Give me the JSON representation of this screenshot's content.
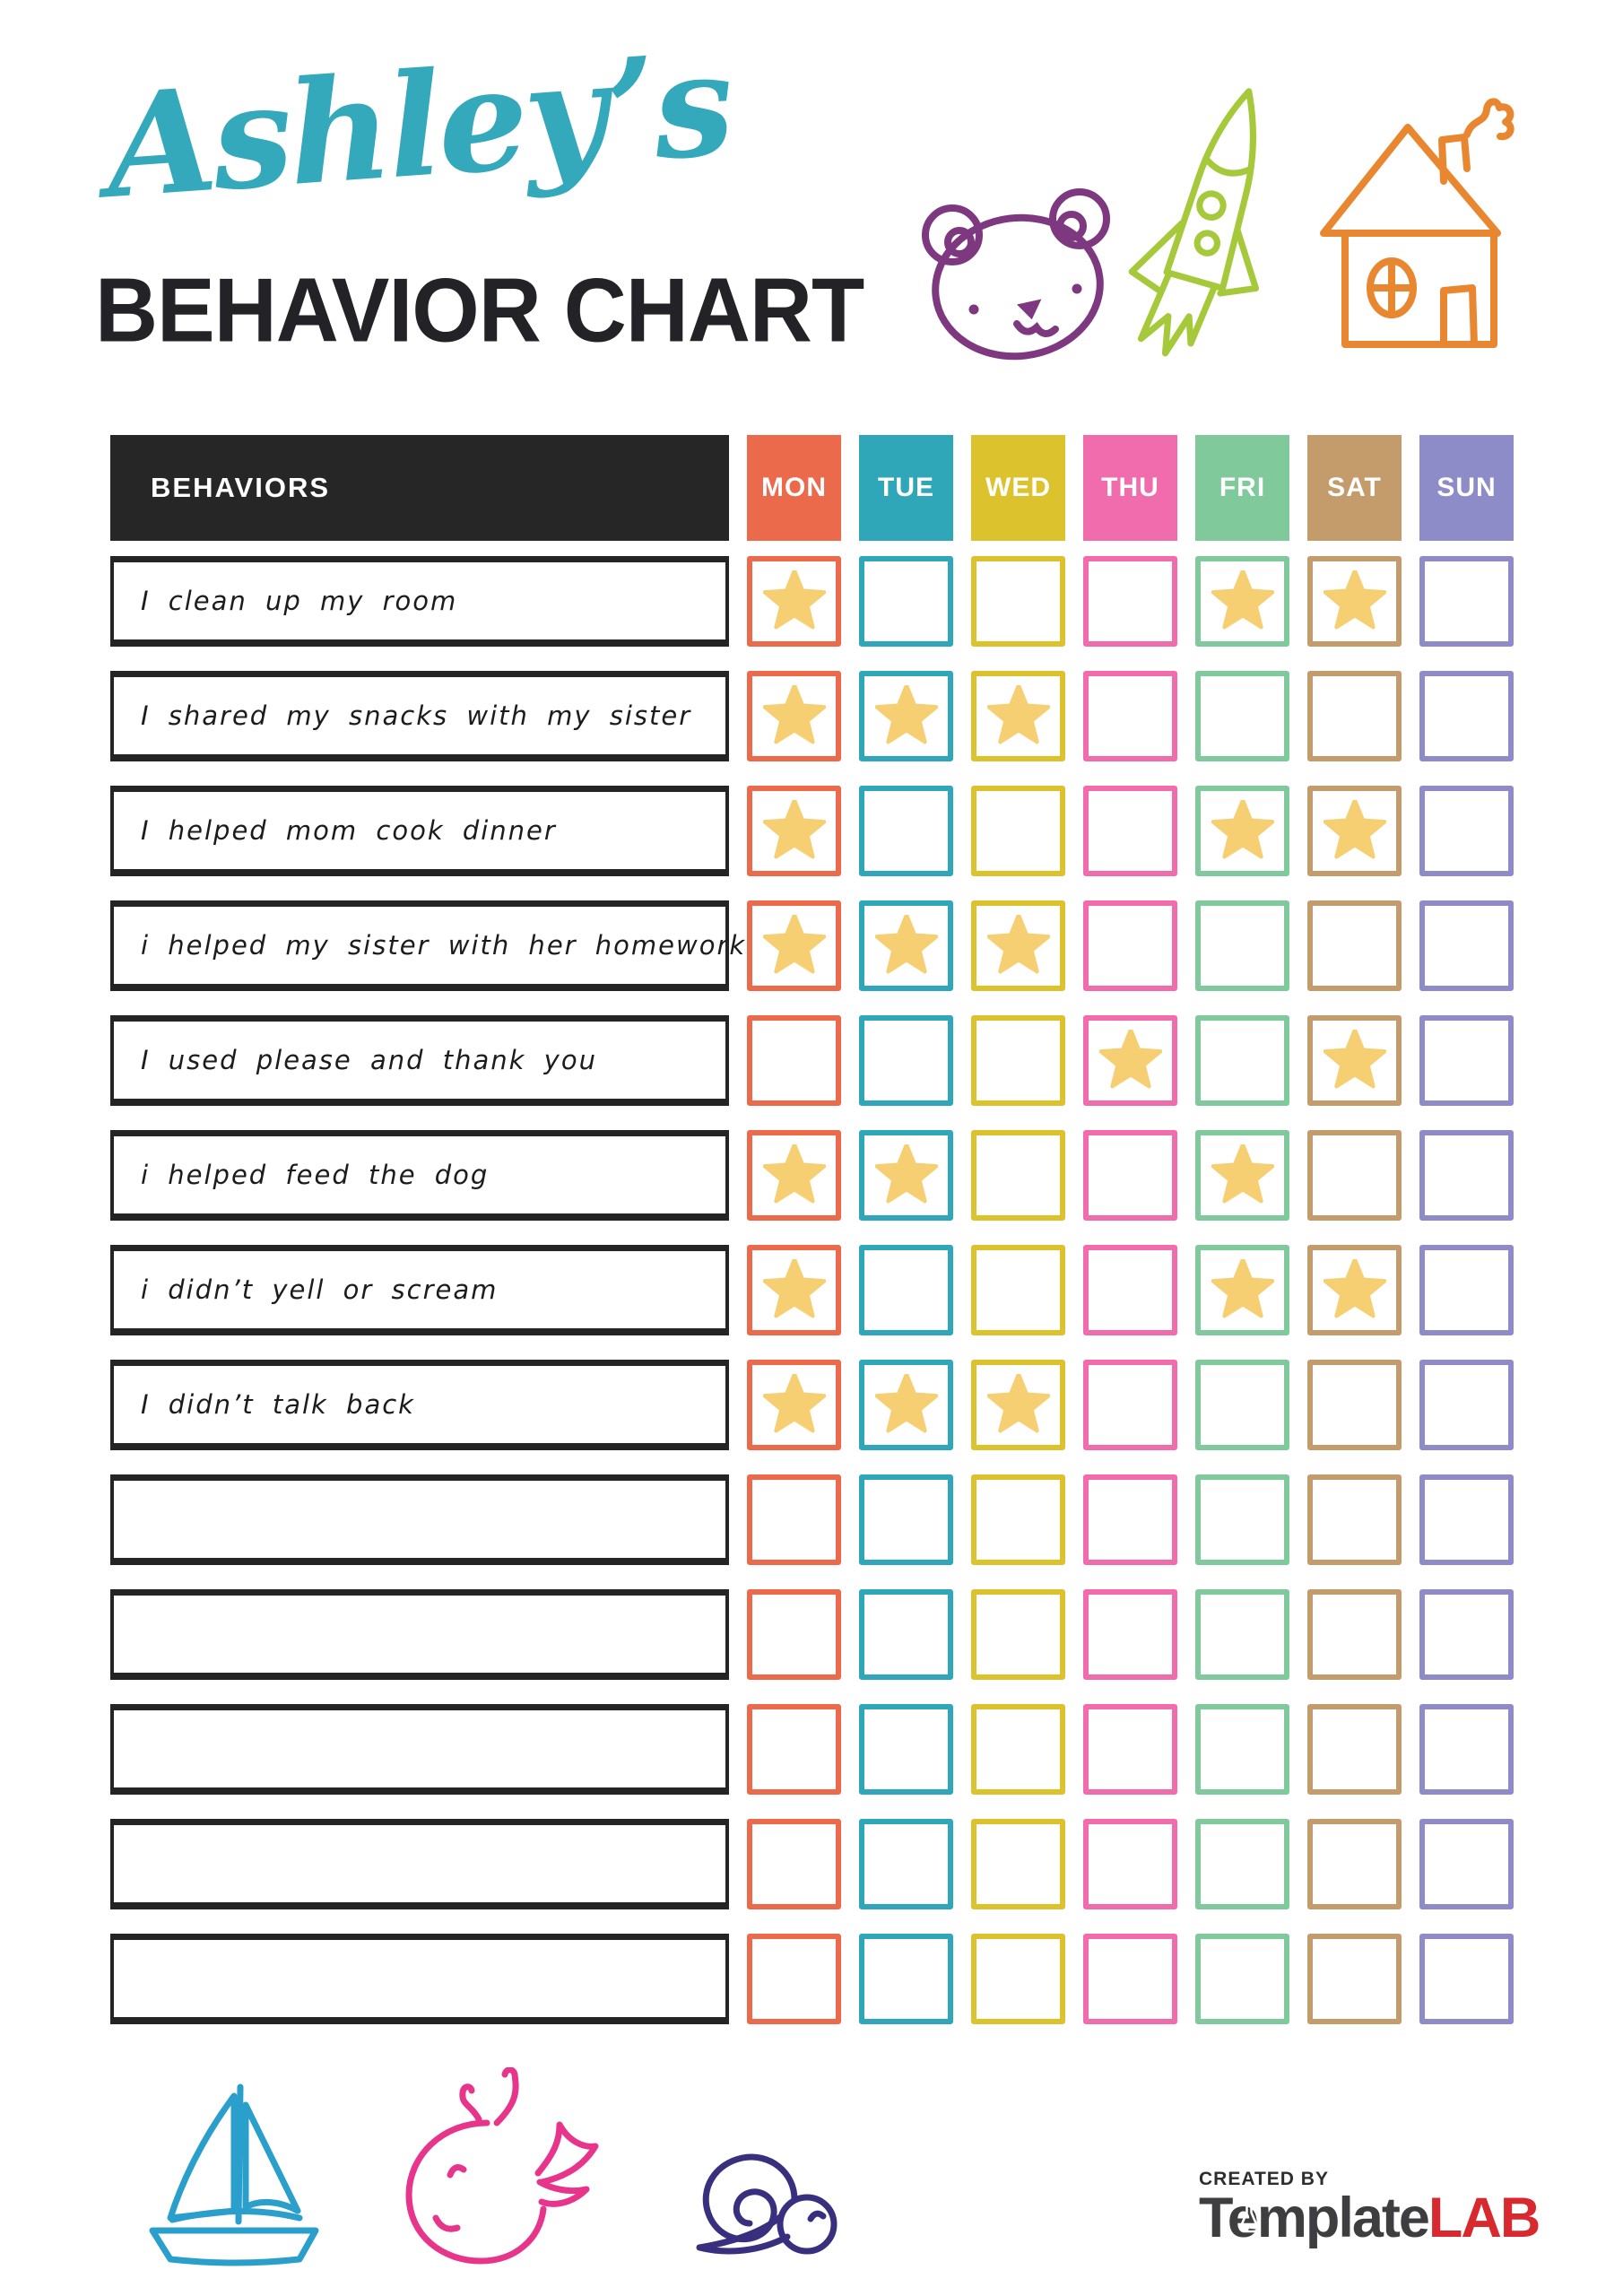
{
  "header": {
    "script_title": "Ashley’s",
    "script_color": "#35A9BC",
    "main_title": "BEHAVIOR CHART",
    "main_color": "#232227"
  },
  "table": {
    "behaviors_header": "BEHAVIORS",
    "header_bg": "#262626",
    "header_text_color": "#FFFFFF",
    "row_border_color": "#242424",
    "star_color": "#F7CF73",
    "days": [
      {
        "label": "MON",
        "color": "#EC6A4C"
      },
      {
        "label": "TUE",
        "color": "#2FA7B9"
      },
      {
        "label": "WED",
        "color": "#DCC32D"
      },
      {
        "label": "THU",
        "color": "#F06CAC"
      },
      {
        "label": "FRI",
        "color": "#7FC99B"
      },
      {
        "label": "SAT",
        "color": "#C49C6C"
      },
      {
        "label": "SUN",
        "color": "#8D8CC9"
      }
    ],
    "rows": [
      {
        "behavior": "I clean up my room",
        "stars": [
          1,
          0,
          0,
          0,
          1,
          1,
          0
        ]
      },
      {
        "behavior": "I shared my snacks with my sister",
        "stars": [
          1,
          1,
          1,
          0,
          0,
          0,
          0
        ]
      },
      {
        "behavior": "I helped mom cook dinner",
        "stars": [
          1,
          0,
          0,
          0,
          1,
          1,
          0
        ]
      },
      {
        "behavior": "i helped my sister with her homework",
        "stars": [
          1,
          1,
          1,
          0,
          0,
          0,
          0
        ]
      },
      {
        "behavior": "I used please and thank you",
        "stars": [
          0,
          0,
          0,
          1,
          0,
          1,
          0
        ]
      },
      {
        "behavior": "i helped feed the dog",
        "stars": [
          1,
          1,
          0,
          0,
          1,
          0,
          0
        ]
      },
      {
        "behavior": "i didn’t yell or scream",
        "stars": [
          1,
          0,
          0,
          0,
          1,
          1,
          0
        ]
      },
      {
        "behavior": "I didn’t talk back",
        "stars": [
          1,
          1,
          1,
          0,
          0,
          0,
          0
        ]
      },
      {
        "behavior": "",
        "stars": [
          0,
          0,
          0,
          0,
          0,
          0,
          0
        ]
      },
      {
        "behavior": "",
        "stars": [
          0,
          0,
          0,
          0,
          0,
          0,
          0
        ]
      },
      {
        "behavior": "",
        "stars": [
          0,
          0,
          0,
          0,
          0,
          0,
          0
        ]
      },
      {
        "behavior": "",
        "stars": [
          0,
          0,
          0,
          0,
          0,
          0,
          0
        ]
      },
      {
        "behavior": "",
        "stars": [
          0,
          0,
          0,
          0,
          0,
          0,
          0
        ]
      }
    ]
  },
  "doodles": {
    "bear": {
      "color": "#7E3880"
    },
    "rocket": {
      "color": "#A5C93B"
    },
    "house": {
      "color": "#E8872F"
    },
    "sailboat": {
      "color": "#2B9FCB"
    },
    "whale": {
      "color": "#E8358C"
    },
    "snail": {
      "color": "#38307E"
    }
  },
  "footer": {
    "created_by": "CREATED BY",
    "brand_primary": "Template",
    "brand_accent": "LAB",
    "brand_primary_color": "#3E3E40",
    "brand_accent_color": "#D8292F"
  }
}
